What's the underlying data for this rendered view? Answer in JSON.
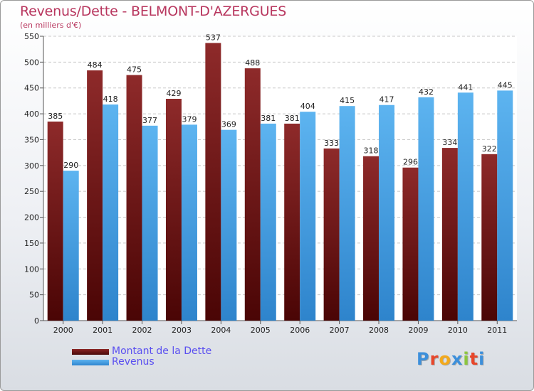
{
  "title": "Revenus/Dette - BELMONT-D'AZERGUES",
  "subtitle": "(en milliers d'€)",
  "chart_data": {
    "type": "bar",
    "categories": [
      "2000",
      "2001",
      "2002",
      "2003",
      "2004",
      "2005",
      "2006",
      "2007",
      "2008",
      "2009",
      "2010",
      "2011"
    ],
    "series": [
      {
        "name": "Montant de la Dette",
        "values": [
          385,
          484,
          475,
          429,
          537,
          488,
          381,
          333,
          318,
          296,
          334,
          322
        ],
        "color": "#7a1f1f"
      },
      {
        "name": "Revenus",
        "values": [
          290,
          418,
          377,
          379,
          369,
          381,
          404,
          415,
          417,
          432,
          441,
          445
        ],
        "color": "#4aa3e6"
      }
    ],
    "yticks": [
      0,
      50,
      100,
      150,
      200,
      250,
      300,
      350,
      400,
      450,
      500,
      550
    ],
    "ylim": [
      0,
      550
    ],
    "grid": true
  },
  "legend": {
    "items": [
      {
        "label": "Montant de la Dette",
        "color": "#6b1414"
      },
      {
        "label": "Revenus",
        "color": "#4aa3e6"
      }
    ]
  },
  "logo": {
    "letters": [
      "P",
      "r",
      "o",
      "x",
      "i",
      "t",
      "i"
    ],
    "colors": [
      "#3c8fdb",
      "#e8462a",
      "#f3a91b",
      "#3c8fdb",
      "#8cc63f",
      "#e8462a",
      "#3c8fdb"
    ]
  }
}
